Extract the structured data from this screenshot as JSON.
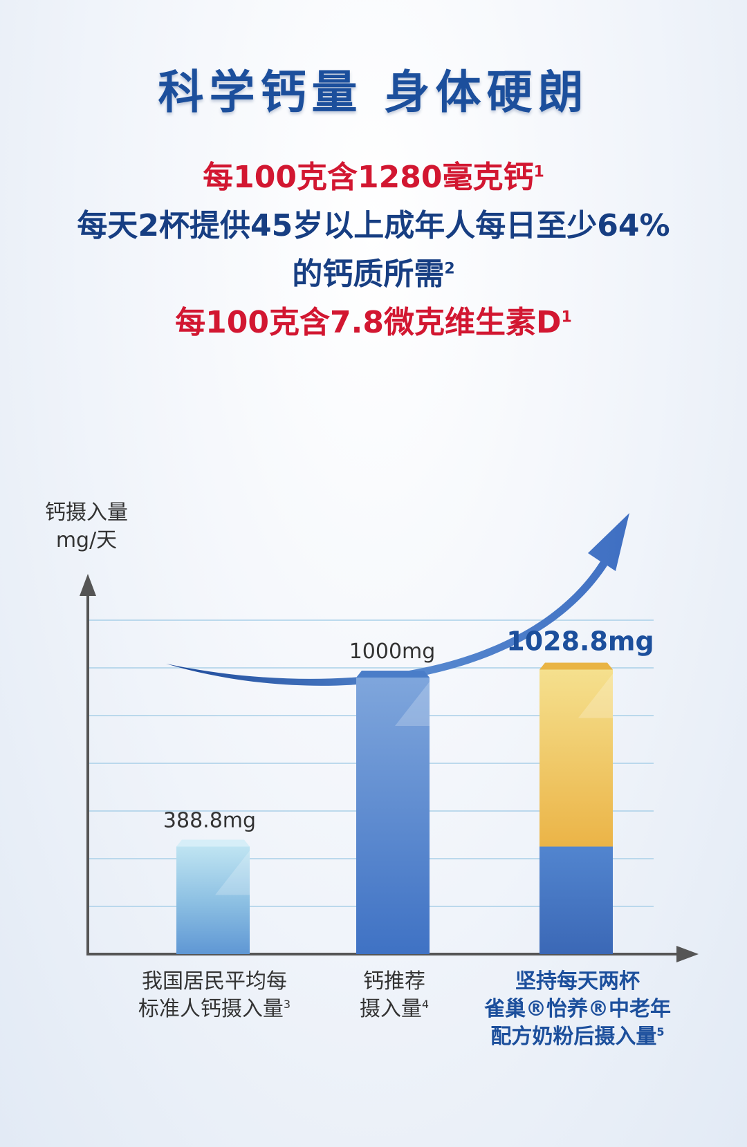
{
  "title": "科学钙量 身体硬朗",
  "claims": {
    "line1": {
      "text": "每100克含1280毫克钙",
      "sup": "1"
    },
    "line2": {
      "text": "每天2杯提供45岁以上成年人每日至少64%"
    },
    "line3": {
      "text": "的钙质所需",
      "sup": "2"
    },
    "line4": {
      "text": "每100克含7.8微克维生素D",
      "sup": "1"
    }
  },
  "colors": {
    "red": "#d21731",
    "navy": "#173e82",
    "title_blue": "#1c4f9c",
    "bar_blue": "#4f84cb",
    "bar_light": "#9fcfe8",
    "bar_gold": "#eeb84a"
  },
  "chart_data": {
    "type": "bar",
    "ylabel": [
      "钙摄入量",
      "mg/天"
    ],
    "ylim": [
      0,
      1300
    ],
    "grid": true,
    "categories": [
      {
        "lines": [
          "我国居民平均每",
          "标准人钙摄入量"
        ],
        "sup": "3"
      },
      {
        "lines": [
          "钙推荐",
          "摄入量"
        ],
        "sup": "4"
      },
      {
        "lines": [
          "坚持每天两杯",
          "雀巢®怡养®中老年",
          "配方奶粉后摄入量"
        ],
        "sup": "5"
      }
    ],
    "series": [
      {
        "values": [
          388.8,
          1000,
          388.8
        ]
      },
      {
        "values": [
          0,
          0,
          640
        ]
      }
    ],
    "totals": [
      388.8,
      1000,
      1028.8
    ],
    "value_labels": [
      "388.8mg",
      "1000mg",
      "1028.8mg"
    ],
    "annotation": "upward-trend-arrow"
  }
}
